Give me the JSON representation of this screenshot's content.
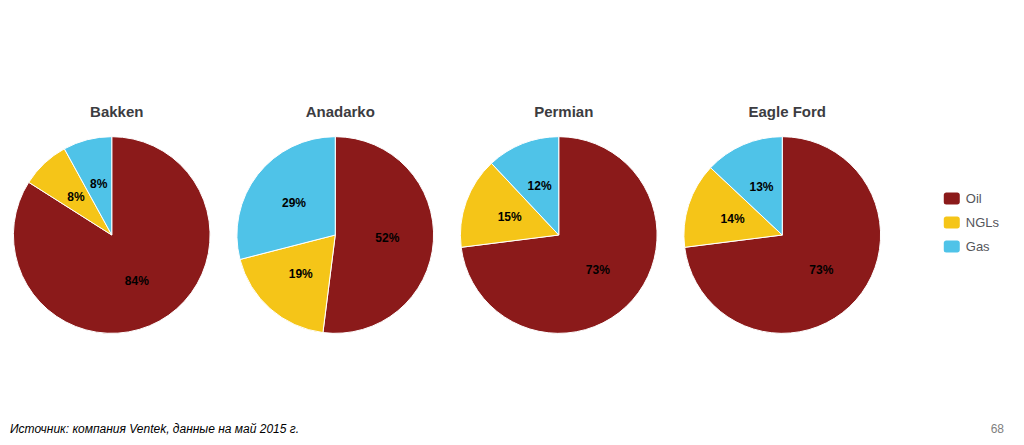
{
  "chart_data": [
    {
      "type": "pie",
      "title": "Bakken",
      "categories": [
        "Oil",
        "NGLs",
        "Gas"
      ],
      "values": [
        84,
        8,
        8
      ],
      "value_labels": [
        "84%",
        "8%",
        "8%"
      ],
      "colors": [
        "#8B1A1A",
        "#F5C518",
        "#4FC3E8"
      ],
      "data_labels": true,
      "legend": "right",
      "annotations": [
        "Источник: компания Ventek, данные на май 2015 г.",
        "68"
      ]
    },
    {
      "type": "pie",
      "title": "Anadarko",
      "categories": [
        "Oil",
        "NGLs",
        "Gas"
      ],
      "values": [
        52,
        19,
        29
      ],
      "value_labels": [
        "52%",
        "19%",
        "29%"
      ],
      "colors": [
        "#8B1A1A",
        "#F5C518",
        "#4FC3E8"
      ],
      "data_labels": true
    },
    {
      "type": "pie",
      "title": "Permian",
      "categories": [
        "Oil",
        "NGLs",
        "Gas"
      ],
      "values": [
        73,
        15,
        12
      ],
      "value_labels": [
        "73%",
        "15%",
        "12%"
      ],
      "colors": [
        "#8B1A1A",
        "#F5C518",
        "#4FC3E8"
      ],
      "data_labels": true
    },
    {
      "type": "pie",
      "title": "Eagle Ford",
      "categories": [
        "Oil",
        "NGLs",
        "Gas"
      ],
      "values": [
        73,
        14,
        13
      ],
      "value_labels": [
        "73%",
        "14%",
        "13%"
      ],
      "colors": [
        "#8B1A1A",
        "#F5C518",
        "#4FC3E8"
      ],
      "data_labels": true
    }
  ]
}
